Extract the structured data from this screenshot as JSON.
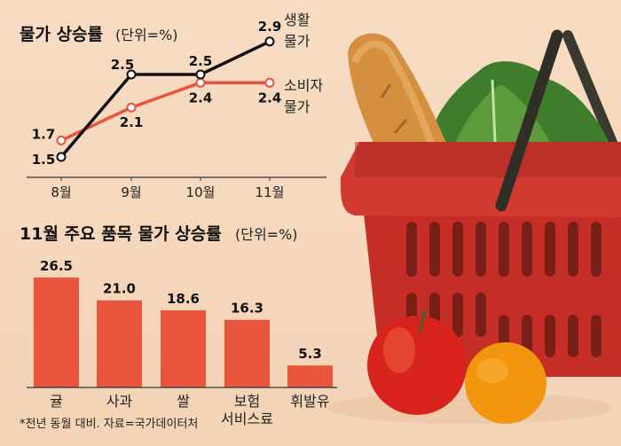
{
  "chart_data": [
    {
      "type": "line",
      "title": "물가 상승률",
      "unit": "(단위=%)",
      "categories": [
        "8월",
        "9월",
        "10월",
        "11월"
      ],
      "series": [
        {
          "name": "생활 물가",
          "name_lines": [
            "생활",
            "물가"
          ],
          "values": [
            1.5,
            2.5,
            2.5,
            2.9
          ],
          "value_labels": [
            "1.5",
            "2.5",
            "2.5",
            "2.9"
          ],
          "color": "#111111"
        },
        {
          "name": "소비자 물가",
          "name_lines": [
            "소비자",
            "물가"
          ],
          "values": [
            1.7,
            2.1,
            2.4,
            2.4
          ],
          "value_labels": [
            "1.7",
            "2.1",
            "2.4",
            "2.4"
          ],
          "color": "#e9553a"
        }
      ],
      "grid": false
    },
    {
      "type": "bar",
      "title": "11월 주요 품목 물가 상승률",
      "unit": "(단위=%)",
      "categories": [
        "귤",
        "사과",
        "쌀",
        "보험 서비스료",
        "휘발유"
      ],
      "category_lines": [
        [
          "귤"
        ],
        [
          "사과"
        ],
        [
          "쌀"
        ],
        [
          "보험",
          "서비스료"
        ],
        [
          "휘발유"
        ]
      ],
      "values": [
        26.5,
        21.0,
        18.6,
        16.3,
        5.3
      ],
      "value_labels": [
        "26.5",
        "21.0",
        "18.6",
        "16.3",
        "5.3"
      ],
      "color": "#e9553a",
      "footnote": "*전년 동월 대비. 자료=국가데이터처"
    }
  ],
  "colors": {
    "background": "#f6d9bf",
    "accent": "#e9553a",
    "basket": "#c8322a"
  }
}
